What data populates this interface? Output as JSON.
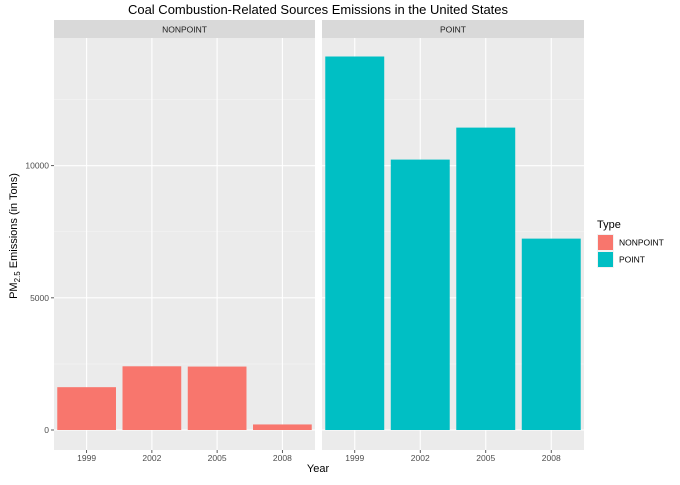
{
  "chart_data": {
    "type": "bar",
    "title": "Coal Combustion-Related Sources Emissions in the United States",
    "xlabel": "Year",
    "ylabel": {
      "prefix": "PM",
      "subscript": "2.5",
      "suffix": " Emissions (in Tons)"
    },
    "categories": [
      "1999",
      "2002",
      "2005",
      "2008"
    ],
    "ylim": [
      0,
      14700
    ],
    "yticks": [
      0,
      5000,
      10000
    ],
    "ytick_labels": [
      "0",
      "5000",
      "10000"
    ],
    "grid": true,
    "facets": [
      "NONPOINT",
      "POINT"
    ],
    "series": [
      {
        "name": "NONPOINT",
        "color": "#F8766D",
        "values": [
          1620,
          2410,
          2400,
          210
        ]
      },
      {
        "name": "POINT",
        "color": "#00BFC4",
        "values": [
          14130,
          10230,
          11440,
          7240
        ]
      }
    ],
    "legend": {
      "title": "Type",
      "position": "right",
      "entries": [
        "NONPOINT",
        "POINT"
      ]
    }
  }
}
